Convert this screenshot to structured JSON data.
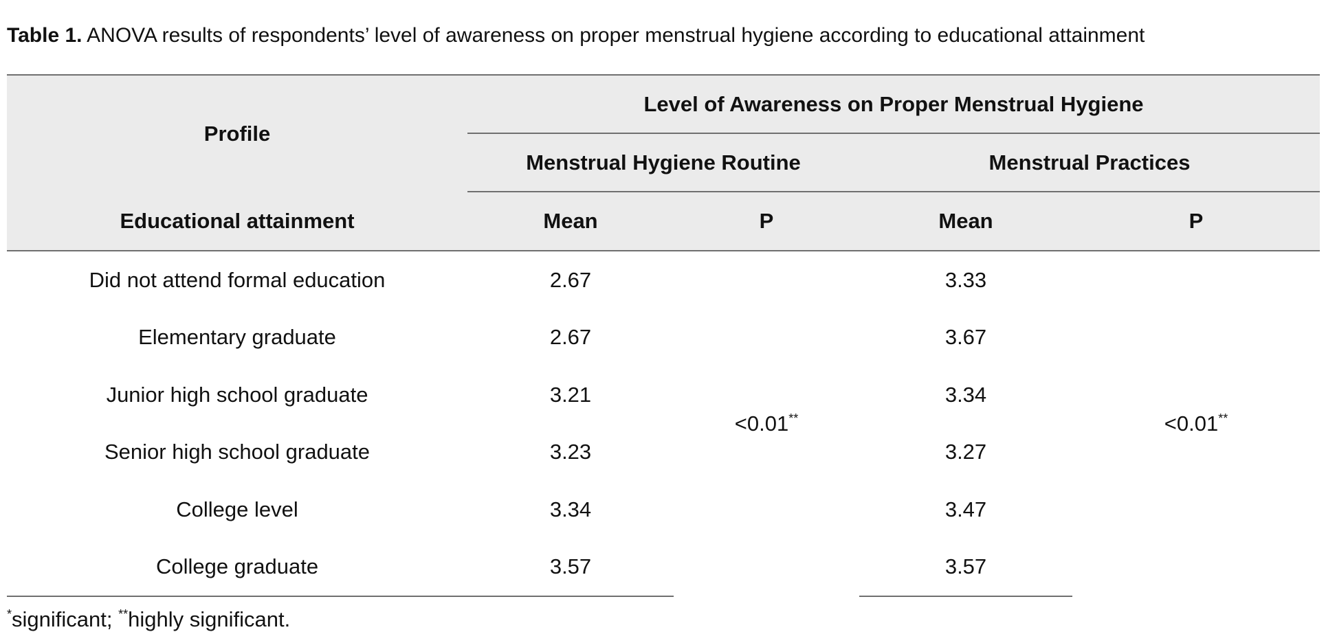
{
  "caption": {
    "label": "Table 1.",
    "text": " ANOVA results of respondents’ level of awareness on proper menstrual hygiene according to educational attainment"
  },
  "header": {
    "profile": "Profile",
    "group_title": "Level of Awareness on Proper Menstrual Hygiene",
    "routine": "Menstrual Hygiene Routine",
    "practices": "Menstrual Practices",
    "row_label": "Educational attainment",
    "mean_1": "Mean",
    "p_1": "P",
    "mean_2": "Mean",
    "p_2": "P"
  },
  "rows": [
    {
      "attainment": "Did not attend formal education",
      "routine_mean": "2.67",
      "practices_mean": "3.33"
    },
    {
      "attainment": "Elementary graduate",
      "routine_mean": "2.67",
      "practices_mean": "3.67"
    },
    {
      "attainment": "Junior high school graduate",
      "routine_mean": "3.21",
      "practices_mean": "3.34"
    },
    {
      "attainment": "Senior high school graduate",
      "routine_mean": "3.23",
      "practices_mean": "3.27"
    },
    {
      "attainment": "College level",
      "routine_mean": "3.34",
      "practices_mean": "3.47"
    },
    {
      "attainment": "College graduate",
      "routine_mean": "3.57",
      "practices_mean": "3.57"
    }
  ],
  "p_values": {
    "routine": "<0.01",
    "routine_mark": "**",
    "practices": "<0.01",
    "practices_mark": "**"
  },
  "footnote": {
    "mark_1": "*",
    "text_1": "significant; ",
    "mark_2": "**",
    "text_2": "highly significant."
  }
}
